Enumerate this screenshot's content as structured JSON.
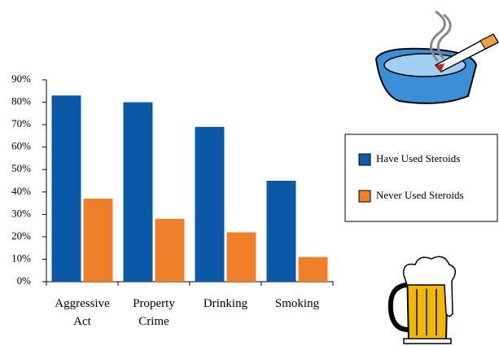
{
  "chart_data": {
    "type": "bar",
    "categories": [
      "Aggressive Act",
      "Property Crime",
      "Drinking",
      "Smoking"
    ],
    "series": [
      {
        "name": "Have Used Steroids",
        "color": "#0b5aa8",
        "values": [
          83,
          80,
          69,
          45
        ]
      },
      {
        "name": "Never Used Steroids",
        "color": "#f07f2a",
        "values": [
          37,
          28,
          22,
          11
        ]
      }
    ],
    "ylim": [
      0,
      90
    ],
    "yticks": [
      {
        "value": 0,
        "label": "0%"
      },
      {
        "value": 10,
        "label": "10%"
      },
      {
        "value": 20,
        "label": "20%"
      },
      {
        "value": 30,
        "label": "30%"
      },
      {
        "value": 40,
        "label": "40%"
      },
      {
        "value": 50,
        "label": "50%"
      },
      {
        "value": 60,
        "label": "60%"
      },
      {
        "value": 70,
        "label": "70%"
      },
      {
        "value": 80,
        "label": "80%"
      },
      {
        "value": 90,
        "label": "90%"
      }
    ]
  }
}
